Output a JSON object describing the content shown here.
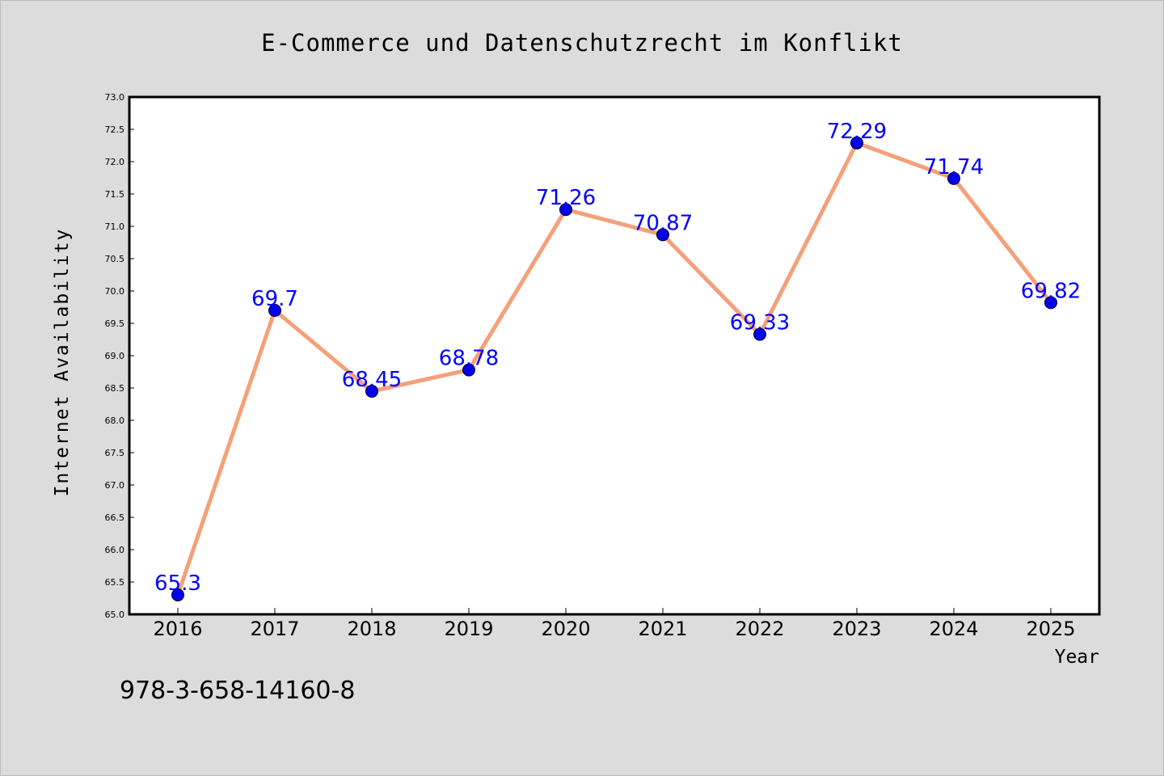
{
  "chart_data": {
    "type": "line",
    "title": "E-Commerce und Datenschutzrecht im Konflikt",
    "xlabel": "Year",
    "ylabel": "Internet Availability",
    "categories": [
      "2016",
      "2017",
      "2018",
      "2019",
      "2020",
      "2021",
      "2022",
      "2023",
      "2024",
      "2025"
    ],
    "series": [
      {
        "values": [
          65.3,
          69.7,
          68.45,
          68.78,
          71.26,
          70.87,
          69.33,
          72.29,
          71.74,
          69.82
        ],
        "labels": [
          "65.3",
          "69.7",
          "68.45",
          "68.78",
          "71.26",
          "70.87",
          "69.33",
          "72.29",
          "71.74",
          "69.82"
        ]
      }
    ],
    "ylim": [
      65.0,
      73.0
    ],
    "yticks": [
      "65.0",
      "65.5",
      "66.0",
      "66.5",
      "67.0",
      "67.5",
      "68.0",
      "68.5",
      "69.0",
      "69.5",
      "70.0",
      "70.5",
      "71.0",
      "71.5",
      "72.0",
      "72.5",
      "73.0"
    ],
    "grid": false,
    "legend": "none",
    "colors": {
      "line": "#f4a07a",
      "marker": "#0000ee",
      "data_label": "#0000ff",
      "background": "#dcdcdc",
      "plot_background": "#ffffff"
    }
  },
  "footer": {
    "isbn": "978-3-658-14160-8"
  }
}
